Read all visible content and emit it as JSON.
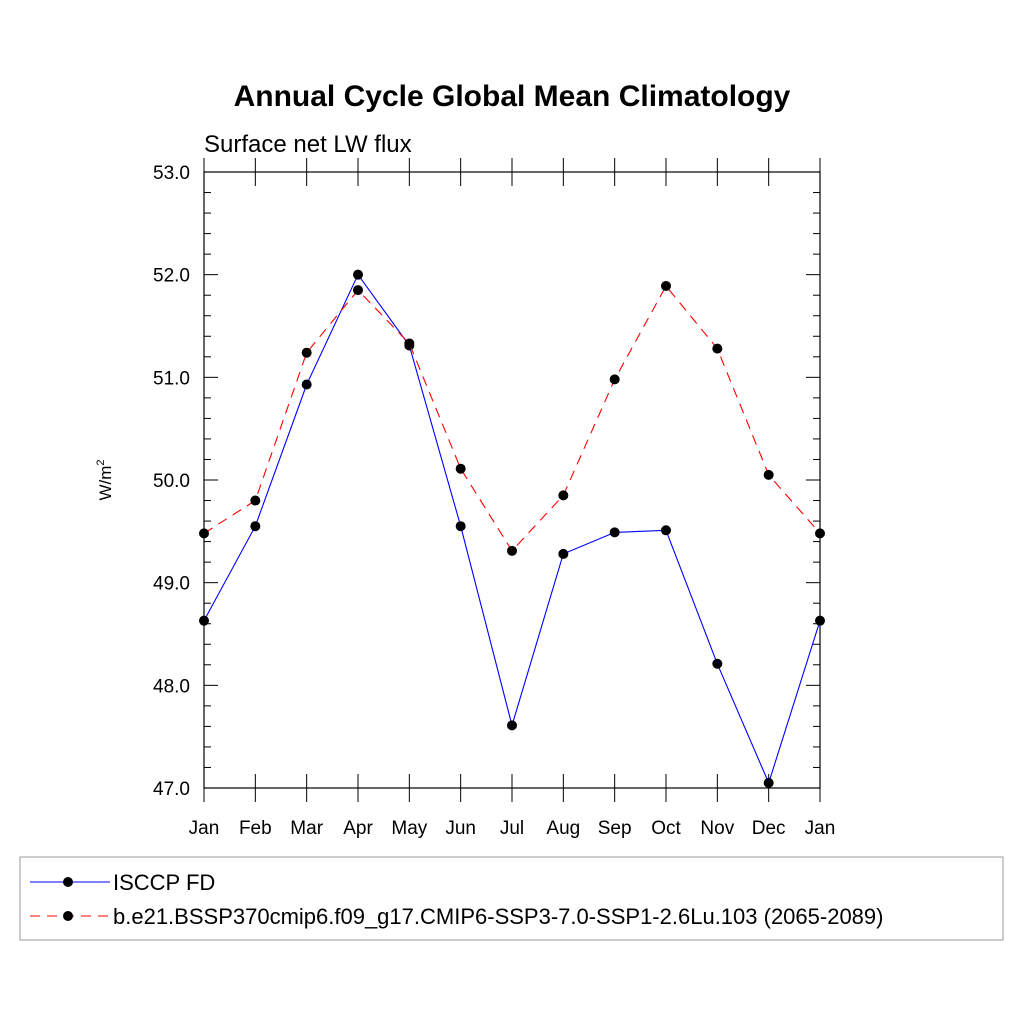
{
  "chart_data": {
    "type": "line",
    "title": "Annual Cycle Global Mean Climatology",
    "subtitle": "Surface net LW flux",
    "ylabel": "W/m",
    "ylabel_sup": "2",
    "xlabel": "",
    "ylim": [
      47.0,
      53.0
    ],
    "yticks": [
      "47.0",
      "48.0",
      "49.0",
      "50.0",
      "51.0",
      "52.0",
      "53.0"
    ],
    "categories": [
      "Jan",
      "Feb",
      "Mar",
      "Apr",
      "May",
      "Jun",
      "Jul",
      "Aug",
      "Sep",
      "Oct",
      "Nov",
      "Dec",
      "Jan"
    ],
    "series": [
      {
        "name": "ISCCP FD",
        "color": "#0000ff",
        "dash": "solid",
        "values": [
          48.63,
          49.55,
          50.93,
          52.0,
          51.31,
          49.55,
          47.61,
          49.28,
          49.49,
          49.51,
          48.21,
          47.05,
          48.63
        ]
      },
      {
        "name": "b.e21.BSSP370cmip6.f09_g17.CMIP6-SSP3-7.0-SSP1-2.6Lu.103 (2065-2089)",
        "color": "#ff0000",
        "dash": "dashed",
        "values": [
          49.48,
          49.8,
          51.24,
          51.85,
          51.33,
          50.11,
          49.31,
          49.85,
          50.98,
          51.89,
          51.28,
          50.05,
          49.48
        ]
      }
    ],
    "legend_position": "bottom"
  }
}
